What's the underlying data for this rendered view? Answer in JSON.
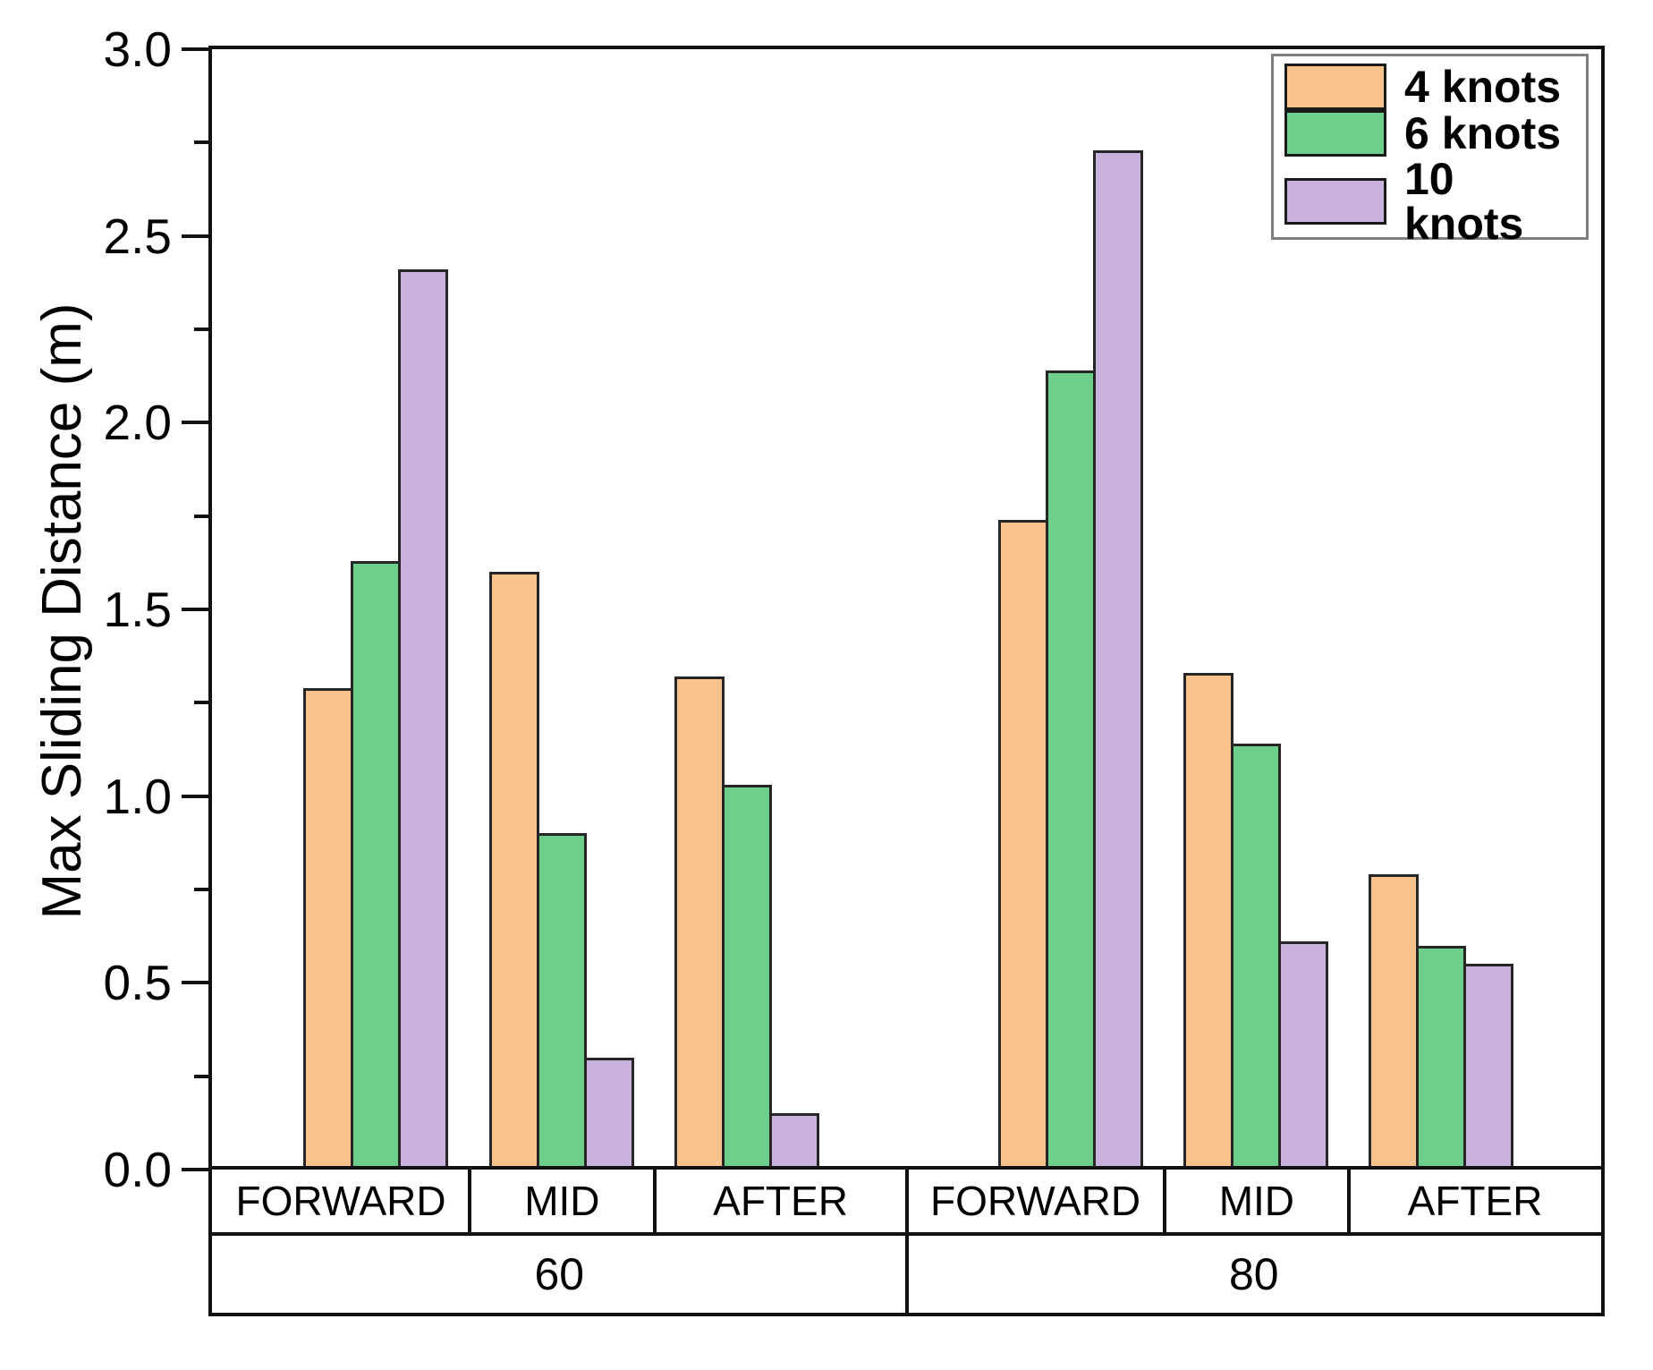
{
  "chart_data": {
    "type": "bar",
    "title": "",
    "ylabel": "Max Sliding Distance (m)",
    "xlabel": "",
    "ylim": [
      0.0,
      3.0
    ],
    "yticks": [
      3.0,
      2.5,
      2.0,
      1.5,
      1.0,
      0.5,
      0.0
    ],
    "ytick_labels": [
      "3.0",
      "2.5",
      "2.0",
      "1.5",
      "1.0",
      "0.5",
      "0.0"
    ],
    "yticks_minor": [
      2.75,
      2.25,
      1.75,
      1.25,
      0.75,
      0.25
    ],
    "grid": false,
    "legend_position": "top-right",
    "axis_color": "#111111",
    "bar_border_color": "#262626",
    "series": [
      {
        "name": "4 knots",
        "color": "#FAC28C"
      },
      {
        "name": "6 knots",
        "color": "#6ECE8C"
      },
      {
        "name": "10 knots",
        "color": "#C9B3DC"
      }
    ],
    "groups": [
      {
        "label": "60",
        "categories": [
          "FORWARD",
          "MID",
          "AFTER"
        ],
        "values": [
          [
            1.29,
            1.63,
            2.41
          ],
          [
            1.6,
            0.9,
            0.3
          ],
          [
            1.32,
            1.03,
            0.15
          ]
        ]
      },
      {
        "label": "80",
        "categories": [
          "FORWARD",
          "MID",
          "AFTER"
        ],
        "values": [
          [
            1.74,
            2.14,
            2.73
          ],
          [
            1.33,
            1.14,
            0.61
          ],
          [
            0.79,
            0.6,
            0.55
          ]
        ]
      }
    ]
  }
}
